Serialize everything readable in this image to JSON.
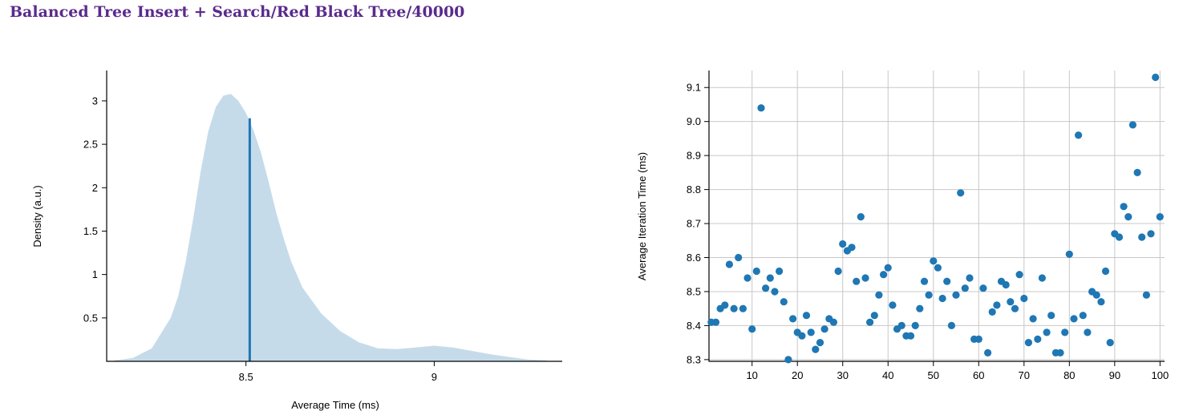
{
  "page": {
    "title": "Balanced Tree Insert + Search/Red Black Tree/40000"
  },
  "colors": {
    "title": "#5a2a8c",
    "density_fill": "#c6dbea",
    "mean_line": "#1f77b4",
    "points": "#1f77b4",
    "grid": "#c8c8c8"
  },
  "chart_data": [
    {
      "type": "area",
      "xlabel": "Average Time (ms)",
      "ylabel": "Density (a.u.)",
      "xlim": [
        8.13,
        9.34
      ],
      "ylim": [
        0,
        3.35
      ],
      "xticks": [
        8.5,
        9
      ],
      "xtick_labels": [
        "8.5",
        "9"
      ],
      "yticks": [
        0.5,
        1,
        1.5,
        2,
        2.5,
        3
      ],
      "ytick_labels": [
        "0.5",
        "1",
        "1.5",
        "2",
        "2.5",
        "3"
      ],
      "density": {
        "x": [
          8.15,
          8.2,
          8.25,
          8.3,
          8.32,
          8.34,
          8.36,
          8.38,
          8.4,
          8.42,
          8.44,
          8.46,
          8.48,
          8.5,
          8.52,
          8.54,
          8.56,
          8.58,
          8.6,
          8.62,
          8.65,
          8.7,
          8.75,
          8.8,
          8.85,
          8.9,
          8.95,
          9.0,
          9.05,
          9.1,
          9.15,
          9.2,
          9.25,
          9.3
        ],
        "y": [
          0.01,
          0.04,
          0.15,
          0.5,
          0.75,
          1.15,
          1.65,
          2.2,
          2.65,
          2.93,
          3.06,
          3.08,
          3.0,
          2.86,
          2.66,
          2.4,
          2.07,
          1.72,
          1.42,
          1.15,
          0.85,
          0.55,
          0.35,
          0.22,
          0.15,
          0.14,
          0.16,
          0.18,
          0.16,
          0.12,
          0.08,
          0.05,
          0.02,
          0.01
        ]
      },
      "mean_line": {
        "x": 8.51,
        "y": 2.8
      }
    },
    {
      "type": "scatter",
      "xlabel": "",
      "ylabel": "Average Iteration Time (ms)",
      "xlim": [
        0.5,
        101
      ],
      "ylim": [
        8.295,
        9.15
      ],
      "grid": true,
      "xticks": [
        10,
        20,
        30,
        40,
        50,
        60,
        70,
        80,
        90,
        100
      ],
      "xtick_labels": [
        "10",
        "20",
        "30",
        "40",
        "50",
        "60",
        "70",
        "80",
        "90",
        "100"
      ],
      "yticks": [
        8.3,
        8.4,
        8.5,
        8.6,
        8.7,
        8.8,
        8.9,
        9.0,
        9.1
      ],
      "ytick_labels": [
        "8.3",
        "8.4",
        "8.5",
        "8.6",
        "8.7",
        "8.8",
        "8.9",
        "9.0",
        "9.1"
      ],
      "x": [
        1,
        2,
        3,
        4,
        5,
        6,
        7,
        8,
        9,
        10,
        11,
        12,
        13,
        14,
        15,
        16,
        17,
        18,
        19,
        20,
        21,
        22,
        23,
        24,
        25,
        26,
        27,
        28,
        29,
        30,
        31,
        32,
        33,
        34,
        35,
        36,
        37,
        38,
        39,
        40,
        41,
        42,
        43,
        44,
        45,
        46,
        47,
        48,
        49,
        50,
        51,
        52,
        53,
        54,
        55,
        56,
        57,
        58,
        59,
        60,
        61,
        62,
        63,
        64,
        65,
        66,
        67,
        68,
        69,
        70,
        71,
        72,
        73,
        74,
        75,
        76,
        77,
        78,
        79,
        80,
        81,
        82,
        83,
        84,
        85,
        86,
        87,
        88,
        89,
        90,
        91,
        92,
        93,
        94,
        95,
        96,
        97,
        98,
        99,
        100
      ],
      "y": [
        8.41,
        8.41,
        8.45,
        8.46,
        8.58,
        8.45,
        8.6,
        8.45,
        8.54,
        8.39,
        8.56,
        9.04,
        8.51,
        8.54,
        8.5,
        8.56,
        8.47,
        8.3,
        8.42,
        8.38,
        8.37,
        8.43,
        8.38,
        8.33,
        8.35,
        8.39,
        8.42,
        8.41,
        8.56,
        8.64,
        8.62,
        8.63,
        8.53,
        8.72,
        8.54,
        8.41,
        8.43,
        8.49,
        8.55,
        8.57,
        8.46,
        8.39,
        8.4,
        8.37,
        8.37,
        8.4,
        8.45,
        8.53,
        8.49,
        8.59,
        8.57,
        8.48,
        8.53,
        8.4,
        8.49,
        8.79,
        8.51,
        8.54,
        8.36,
        8.36,
        8.51,
        8.32,
        8.44,
        8.46,
        8.53,
        8.52,
        8.47,
        8.45,
        8.55,
        8.48,
        8.35,
        8.42,
        8.36,
        8.54,
        8.38,
        8.43,
        8.32,
        8.32,
        8.38,
        8.61,
        8.42,
        8.96,
        8.43,
        8.38,
        8.5,
        8.49,
        8.47,
        8.56,
        8.35,
        8.67,
        8.66,
        8.75,
        8.72,
        8.99,
        8.85,
        8.66,
        8.49,
        8.67,
        9.13,
        8.72
      ]
    }
  ]
}
